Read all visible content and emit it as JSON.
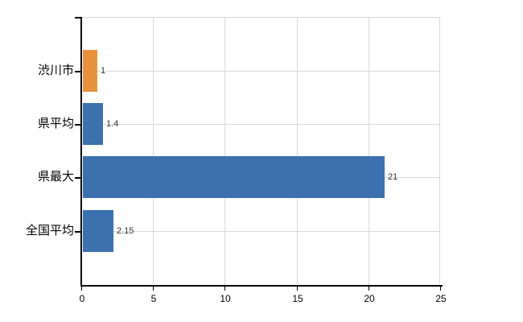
{
  "chart_data": {
    "type": "bar",
    "orientation": "horizontal",
    "categories": [
      "渋川市",
      "県平均",
      "県最大",
      "全国平均"
    ],
    "values": [
      1,
      1.4,
      21,
      2.15
    ],
    "value_labels": [
      "1",
      "1.4",
      "21",
      "2.15"
    ],
    "bar_colors": [
      "#E8923C",
      "#3C70AE",
      "#3C70AE",
      "#3C70AE"
    ],
    "xlim": [
      0,
      25
    ],
    "x_ticks": [
      0,
      5,
      10,
      15,
      20,
      25
    ],
    "x_tick_labels": [
      "0",
      "5",
      "10",
      "15",
      "20",
      "25"
    ],
    "grid": true,
    "legend": false,
    "colors": {
      "bar_orange": "#E8923C",
      "bar_blue": "#3C70AE",
      "gridline": "#D8D8D8",
      "axis": "#000000",
      "background": "#FFFFFF",
      "value_text": "#333333",
      "label_text": "#000000"
    }
  }
}
